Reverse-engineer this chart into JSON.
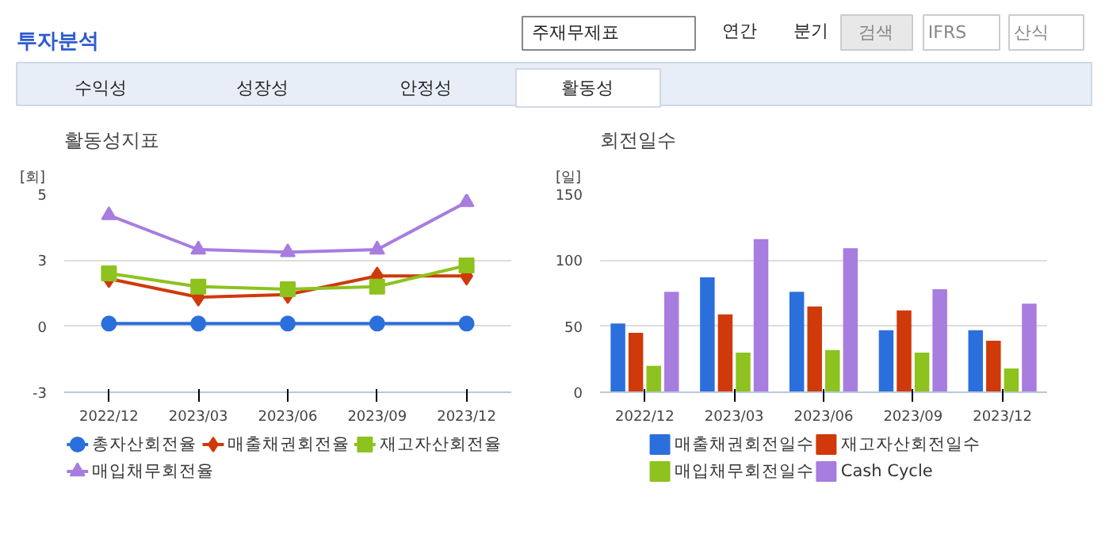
{
  "chart_data": [
    {
      "type": "other",
      "title": "투자분석",
      "annotations": [
        "주재무제표",
        "연간",
        "분기",
        "검색",
        "IFRS",
        "산식",
        "수익성",
        "성장성",
        "안정성",
        "활동성"
      ]
    },
    {
      "type": "line",
      "title": "활동성지표",
      "ylabel": "[회]",
      "categories": [
        "2022/12",
        "2023/03",
        "2023/06",
        "2023/09",
        "2023/12"
      ],
      "series": [
        {
          "name": "총자산회전율",
          "color": "#2b6fdc",
          "marker": "circle",
          "values": [
            0.1,
            0.1,
            0.1,
            0.1,
            0.1
          ]
        },
        {
          "name": "매출채권회전율",
          "color": "#d0390a",
          "marker": "diamond",
          "values": [
            1.8,
            1.1,
            1.2,
            1.9,
            1.9
          ]
        },
        {
          "name": "재고자산회전율",
          "color": "#8dc21f",
          "marker": "square",
          "values": [
            2.0,
            1.5,
            1.4,
            1.5,
            2.3
          ]
        },
        {
          "name": "매입채무회전율",
          "color": "#a77de0",
          "marker": "triangle",
          "values": [
            4.2,
            2.9,
            2.8,
            2.9,
            4.7
          ]
        }
      ],
      "ylim": [
        -2.5,
        5
      ],
      "yticks": [
        {
          "value": -2.5,
          "label": "-3"
        },
        0,
        {
          "value": 2.5,
          "label": "3"
        },
        5
      ],
      "grid": "y",
      "legend": "bottom",
      "line_style": "solid"
    },
    {
      "type": "bar",
      "title": "회전일수",
      "ylabel": "[일]",
      "categories": [
        "2022/12",
        "2023/03",
        "2023/06",
        "2023/09",
        "2023/12"
      ],
      "series": [
        {
          "name": "매출채권회전일수",
          "color": "#2b6fdc",
          "values": [
            52,
            87,
            76,
            47,
            47
          ]
        },
        {
          "name": "재고자산회전일수",
          "color": "#d0390a",
          "values": [
            45,
            59,
            65,
            62,
            39
          ]
        },
        {
          "name": "매입채무회전일수",
          "color": "#8dc21f",
          "values": [
            20,
            30,
            32,
            30,
            18
          ]
        },
        {
          "name": "Cash Cycle",
          "color": "#a77de0",
          "values": [
            76,
            116,
            109,
            78,
            67
          ]
        }
      ],
      "ylim": [
        0,
        150
      ],
      "yticks": [
        0,
        50,
        100,
        150
      ],
      "grid": "y",
      "legend": "bottom"
    }
  ]
}
